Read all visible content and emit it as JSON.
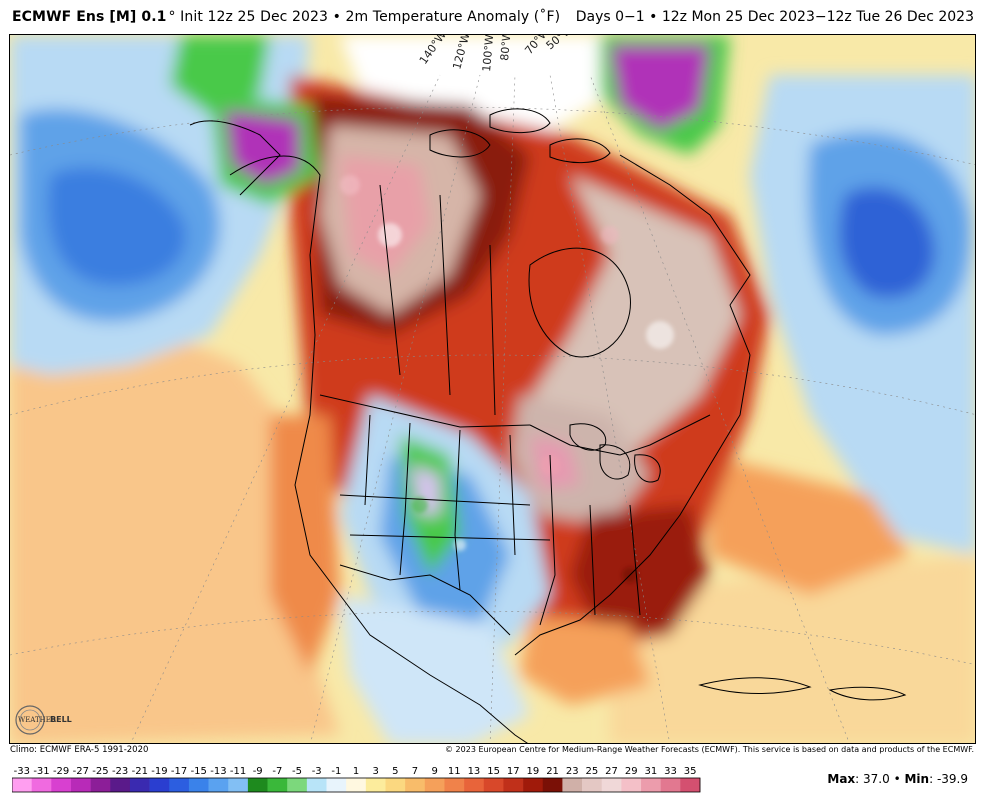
{
  "header": {
    "model": "ECMWF Ens [M] 0.1",
    "degree_symbol": "°",
    "init_text": "Init 12z 25 Dec 2023 • 2m Temperature Anomaly (˚F)",
    "valid_text": "Days 0−1 • 12z Mon 25 Dec 2023−12z Tue 26 Dec 2023"
  },
  "map": {
    "longitude_labels": [
      "140°W",
      "120°W",
      "100°W",
      "80°W",
      "70°W",
      "50°W"
    ],
    "colors": {
      "ocean_warm": "#f8e9a8",
      "light_orange": "#f9c68a",
      "orange": "#ef8a4a",
      "red": "#cf3a1a",
      "dark_red": "#8a1a0a",
      "brown_white": "#e8d8d0",
      "pink": "#f0b0b8",
      "light_blue": "#b8daf4",
      "blue": "#5fa2e8",
      "dark_blue": "#2f62d6",
      "green": "#49c94a",
      "purple": "#b030b8",
      "border": "#000000"
    }
  },
  "logo": {
    "text_weather": "WEATHER",
    "text_bell": "BELL"
  },
  "footer": {
    "climo": "Climo: ECMWF ERA-5 1991-2020",
    "copyright": "© 2023 European Centre for Medium-Range Weather Forecasts (ECMWF). This service is based on data and products of the ECMWF."
  },
  "colorbar": {
    "labels": [
      "-33",
      "-31",
      "-29",
      "-27",
      "-25",
      "-23",
      "-21",
      "-19",
      "-17",
      "-15",
      "-13",
      "-11",
      "-9",
      "-7",
      "-5",
      "-3",
      "-1",
      "1",
      "3",
      "5",
      "7",
      "9",
      "11",
      "13",
      "15",
      "17",
      "19",
      "21",
      "23",
      "25",
      "27",
      "29",
      "31",
      "33",
      "35"
    ],
    "colors": [
      "#ff9ef0",
      "#f06ae0",
      "#d840d0",
      "#b82ab8",
      "#8c1e98",
      "#5a1a8a",
      "#3a2ab0",
      "#2a3ed0",
      "#2c5ee0",
      "#3a82ea",
      "#5aa2f0",
      "#82bff4",
      "#1e8a1e",
      "#3ab83a",
      "#7cd87c",
      "#b8e4f8",
      "#e8f4fc",
      "#fff8e0",
      "#fcec9c",
      "#fbd880",
      "#f8bc6a",
      "#f5a05a",
      "#f0824a",
      "#e8643a",
      "#d8482a",
      "#c0301a",
      "#a01a0a",
      "#7a1006",
      "#d0b0a8",
      "#e4c8c4",
      "#f0d8d8",
      "#f4c0c8",
      "#ec9cac",
      "#e27890",
      "#d45070"
    ],
    "max_label": "Max",
    "max_value": "37.0",
    "separator": "•",
    "min_label": "Min",
    "min_value": "-39.9"
  }
}
